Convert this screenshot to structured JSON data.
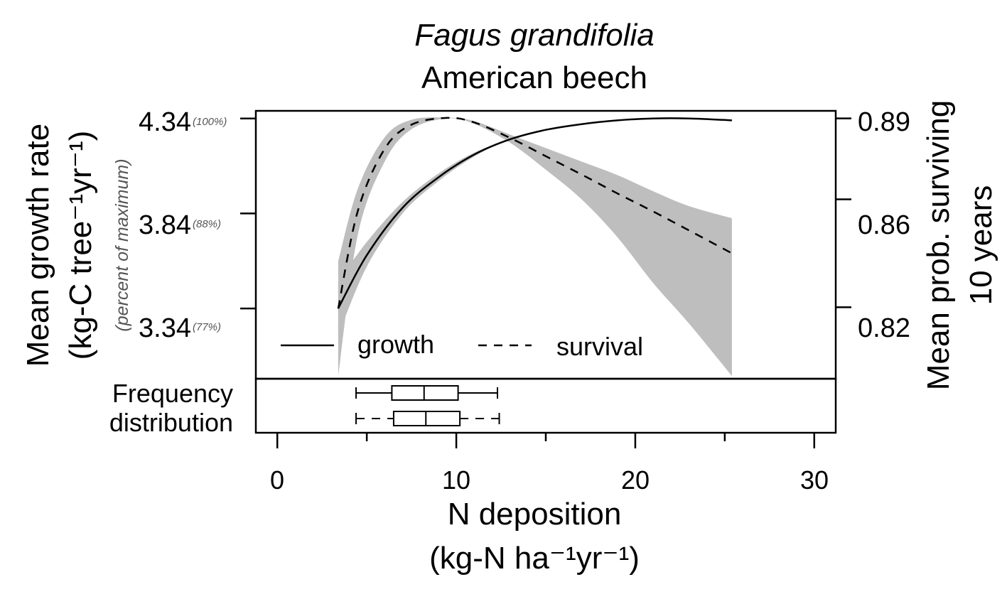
{
  "title": {
    "species": "Fagus grandifolia",
    "common_name": "American beech"
  },
  "axes": {
    "x_label_line1": "N deposition",
    "x_label_line2": "(kg-N ha⁻¹yr⁻¹)",
    "x_ticks": [
      "0",
      "10",
      "20",
      "30"
    ],
    "y_left_label_line1": "Mean growth rate",
    "y_left_label_line2": "(kg-C tree⁻¹yr⁻¹)",
    "y_left_sublabel": "(percent of maximum)",
    "y_left_ticks": [
      "4.34",
      "3.84",
      "3.34"
    ],
    "y_left_pct": [
      "(100%)",
      "(88%)",
      "(77%)"
    ],
    "y_right_label_line1": "Mean prob. surviving",
    "y_right_label_line2": "10 years",
    "y_right_ticks": [
      "0.89",
      "0.86",
      "0.82"
    ]
  },
  "legend": {
    "growth": "growth",
    "survival": "survival"
  },
  "freq": {
    "label_line1": "Frequency",
    "label_line2": "distribution"
  },
  "chart_data": {
    "type": "line",
    "title": "Fagus grandifolia American beech",
    "xlabel": "N deposition (kg-N ha-1 yr-1)",
    "ylabel": "Mean growth rate (kg-C tree-1 yr-1)",
    "y2label": "Mean prob. surviving 10 years",
    "xlim": [
      -1.2,
      31.2
    ],
    "x_ticks": [
      0,
      10,
      20,
      30
    ],
    "ylim_left": [
      2.97,
      4.38
    ],
    "ylim_right": [
      0.7935,
      0.8928
    ],
    "y_left_ticks": [
      3.34,
      3.84,
      4.34
    ],
    "y_right_ticks": [
      0.82,
      0.86,
      0.89
    ],
    "grid": false,
    "legend_position": "bottom-left",
    "series": [
      {
        "name": "growth",
        "style": "solid",
        "axis": "left",
        "x": [
          3.4,
          5,
          7,
          9,
          11,
          13,
          15,
          17,
          19,
          21,
          23,
          25.4
        ],
        "y": [
          3.34,
          3.62,
          3.87,
          4.03,
          4.15,
          4.23,
          4.28,
          4.31,
          4.33,
          4.34,
          4.34,
          4.33
        ],
        "ci_lower": [
          3.2,
          3.56,
          3.84,
          4.01,
          4.14,
          4.23,
          4.28,
          4.31,
          4.33,
          4.34,
          4.34,
          4.33
        ],
        "ci_upper": [
          3.48,
          3.69,
          3.9,
          4.05,
          4.16,
          4.23,
          4.28,
          4.31,
          4.33,
          4.34,
          4.34,
          4.33
        ]
      },
      {
        "name": "survival",
        "style": "dashed",
        "axis": "right",
        "x": [
          3.4,
          4.5,
          6,
          7.5,
          9.5,
          11,
          13,
          15,
          17,
          19,
          21,
          23,
          25.4
        ],
        "y": [
          0.8195,
          0.8558,
          0.8787,
          0.8877,
          0.8902,
          0.8885,
          0.8828,
          0.876,
          0.8692,
          0.8622,
          0.8555,
          0.8485,
          0.84
        ],
        "ci_lower": [
          0.7945,
          0.847,
          0.874,
          0.886,
          0.89,
          0.888,
          0.881,
          0.871,
          0.86,
          0.846,
          0.829,
          0.814,
          0.7945
        ],
        "ci_upper": [
          0.837,
          0.864,
          0.883,
          0.8895,
          0.8903,
          0.889,
          0.884,
          0.879,
          0.874,
          0.869,
          0.863,
          0.8575,
          0.853
        ]
      }
    ],
    "frequency_distribution": [
      {
        "series": "growth",
        "style": "solid",
        "whisker_low": 4.4,
        "q1": 6.4,
        "median": 8.2,
        "q3": 10.1,
        "whisker_high": 12.3
      },
      {
        "series": "survival",
        "style": "dashed",
        "whisker_low": 4.4,
        "q1": 6.5,
        "median": 8.3,
        "q3": 10.2,
        "whisker_high": 12.4
      }
    ]
  }
}
